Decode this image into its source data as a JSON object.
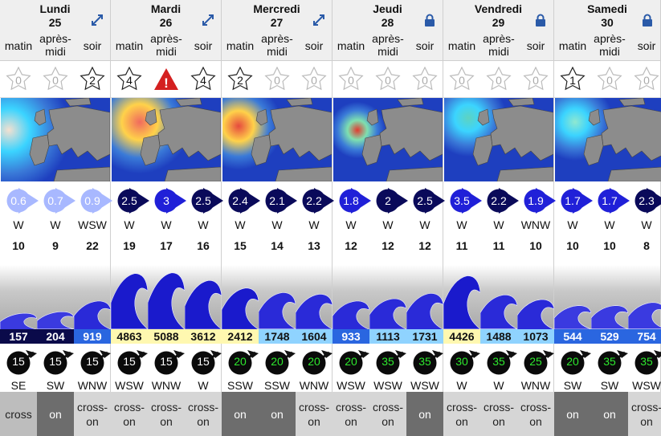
{
  "days": [
    {
      "name": "Lundi",
      "date": "25",
      "icon": "expand-icon",
      "periods": [
        "matin",
        "après-\nmidi",
        "soir"
      ],
      "stars": [
        "0",
        "0",
        "2"
      ],
      "swell": [
        "0.6",
        "0.7",
        "0.9"
      ],
      "dir": [
        "W",
        "W",
        "WSW"
      ],
      "period": [
        "10",
        "9",
        "22"
      ],
      "energy": [
        "157",
        "204",
        "919"
      ],
      "wind": [
        "15",
        "15",
        "15"
      ],
      "wind_dir": [
        "SE",
        "SW",
        "WNW"
      ],
      "relation": [
        "cross",
        "on",
        "cross-\non"
      ]
    },
    {
      "name": "Mardi",
      "date": "26",
      "icon": "expand-icon",
      "periods": [
        "matin",
        "après-\nmidi",
        "soir"
      ],
      "stars": [
        "4",
        "!",
        "4"
      ],
      "swell": [
        "2.5",
        "3",
        "2.5"
      ],
      "dir": [
        "W",
        "W",
        "W"
      ],
      "period": [
        "19",
        "17",
        "16"
      ],
      "energy": [
        "4863",
        "5088",
        "3612"
      ],
      "wind": [
        "15",
        "15",
        "15"
      ],
      "wind_dir": [
        "WSW",
        "WNW",
        "W"
      ],
      "relation": [
        "cross-\non",
        "cross-\non",
        "cross-\non"
      ]
    },
    {
      "name": "Mercredi",
      "date": "27",
      "icon": "expand-icon",
      "periods": [
        "matin",
        "après-\nmidi",
        "soir"
      ],
      "stars": [
        "2",
        "0",
        "0"
      ],
      "swell": [
        "2.4",
        "2.1",
        "2.2"
      ],
      "dir": [
        "W",
        "W",
        "W"
      ],
      "period": [
        "15",
        "14",
        "13"
      ],
      "energy": [
        "2412",
        "1748",
        "1604"
      ],
      "wind": [
        "20",
        "20",
        "20"
      ],
      "wind_dir": [
        "SSW",
        "SSW",
        "WNW"
      ],
      "relation": [
        "on",
        "on",
        "cross-\non"
      ]
    },
    {
      "name": "Jeudi",
      "date": "28",
      "icon": "lock-icon",
      "periods": [
        "matin",
        "après-\nmidi",
        "soir"
      ],
      "stars": [
        "0",
        "0",
        "0"
      ],
      "swell": [
        "1.8",
        "2",
        "2.5"
      ],
      "dir": [
        "W",
        "W",
        "W"
      ],
      "period": [
        "12",
        "12",
        "12"
      ],
      "energy": [
        "933",
        "1113",
        "1731"
      ],
      "wind": [
        "20",
        "35",
        "35"
      ],
      "wind_dir": [
        "WSW",
        "WSW",
        "WSW"
      ],
      "relation": [
        "cross-\non",
        "cross-\non",
        "on"
      ]
    },
    {
      "name": "Vendredi",
      "date": "29",
      "icon": "lock-icon",
      "periods": [
        "matin",
        "après-\nmidi",
        "soir"
      ],
      "stars": [
        "0",
        "0",
        "0"
      ],
      "swell": [
        "3.5",
        "2.2",
        "1.9"
      ],
      "dir": [
        "W",
        "W",
        "WNW"
      ],
      "period": [
        "11",
        "11",
        "10"
      ],
      "energy": [
        "4426",
        "1488",
        "1073"
      ],
      "wind": [
        "30",
        "35",
        "25"
      ],
      "wind_dir": [
        "W",
        "W",
        "WNW"
      ],
      "relation": [
        "cross-\non",
        "cross-\non",
        "cross-\non"
      ]
    },
    {
      "name": "Samedi",
      "date": "30",
      "icon": "lock-icon",
      "periods": [
        "matin",
        "après-\nmidi",
        "soir"
      ],
      "stars": [
        "1",
        "0",
        "0"
      ],
      "swell": [
        "1.7",
        "1.7",
        "2.3"
      ],
      "dir": [
        "W",
        "W",
        "W"
      ],
      "period": [
        "10",
        "10",
        "8"
      ],
      "energy": [
        "544",
        "529",
        "754"
      ],
      "wind": [
        "20",
        "35",
        "35"
      ],
      "wind_dir": [
        "SW",
        "SW",
        "WSW"
      ],
      "relation": [
        "on",
        "on",
        "cross-\non"
      ]
    }
  ],
  "colors": {
    "swell_bubble": "#1414c8",
    "energy_low": "#0a0a5a",
    "energy_mid": "#3a8af0",
    "energy_high": "#fff8b0",
    "wind_green": "#2ee82e"
  }
}
